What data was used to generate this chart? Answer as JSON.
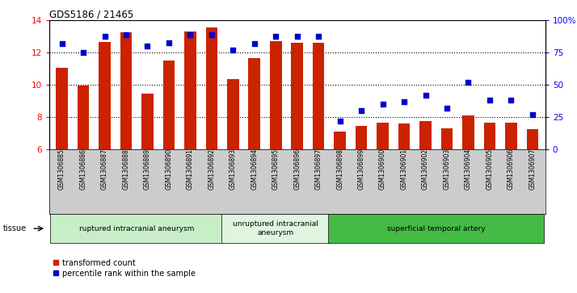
{
  "title": "GDS5186 / 21465",
  "samples": [
    "GSM1306885",
    "GSM1306886",
    "GSM1306887",
    "GSM1306888",
    "GSM1306889",
    "GSM1306890",
    "GSM1306891",
    "GSM1306892",
    "GSM1306893",
    "GSM1306894",
    "GSM1306895",
    "GSM1306896",
    "GSM1306897",
    "GSM1306898",
    "GSM1306899",
    "GSM1306900",
    "GSM1306901",
    "GSM1306902",
    "GSM1306903",
    "GSM1306904",
    "GSM1306905",
    "GSM1306906",
    "GSM1306907"
  ],
  "transformed_count": [
    11.05,
    9.95,
    12.65,
    13.25,
    9.45,
    11.5,
    13.3,
    13.55,
    10.35,
    11.65,
    12.7,
    12.6,
    12.6,
    7.1,
    7.45,
    7.65,
    7.6,
    7.75,
    7.3,
    8.1,
    7.65,
    7.65,
    7.25
  ],
  "percentile_rank": [
    82,
    75,
    88,
    89,
    80,
    83,
    89,
    89,
    77,
    82,
    88,
    88,
    88,
    22,
    30,
    35,
    37,
    42,
    32,
    52,
    38,
    38,
    27
  ],
  "groups": [
    {
      "label": "ruptured intracranial aneurysm",
      "start": 0,
      "end": 7,
      "color": "#c8eec8"
    },
    {
      "label": "unruptured intracranial\naneurysm",
      "start": 8,
      "end": 12,
      "color": "#dff5df"
    },
    {
      "label": "superficial temporal artery",
      "start": 13,
      "end": 22,
      "color": "#44bb44"
    }
  ],
  "ylim_left": [
    6,
    14
  ],
  "ylim_right": [
    0,
    100
  ],
  "yticks_left": [
    6,
    8,
    10,
    12,
    14
  ],
  "yticks_right": [
    0,
    25,
    50,
    75,
    100
  ],
  "ytick_labels_right": [
    "0",
    "25",
    "50",
    "75",
    "100%"
  ],
  "bar_color": "#cc2200",
  "dot_color": "#0000cc",
  "bar_bottom": 6,
  "tick_bg_color": "#cccccc",
  "plot_bg_color": "#ffffff",
  "tissue_label": "tissue",
  "legend_bar_label": "transformed count",
  "legend_dot_label": "percentile rank within the sample"
}
